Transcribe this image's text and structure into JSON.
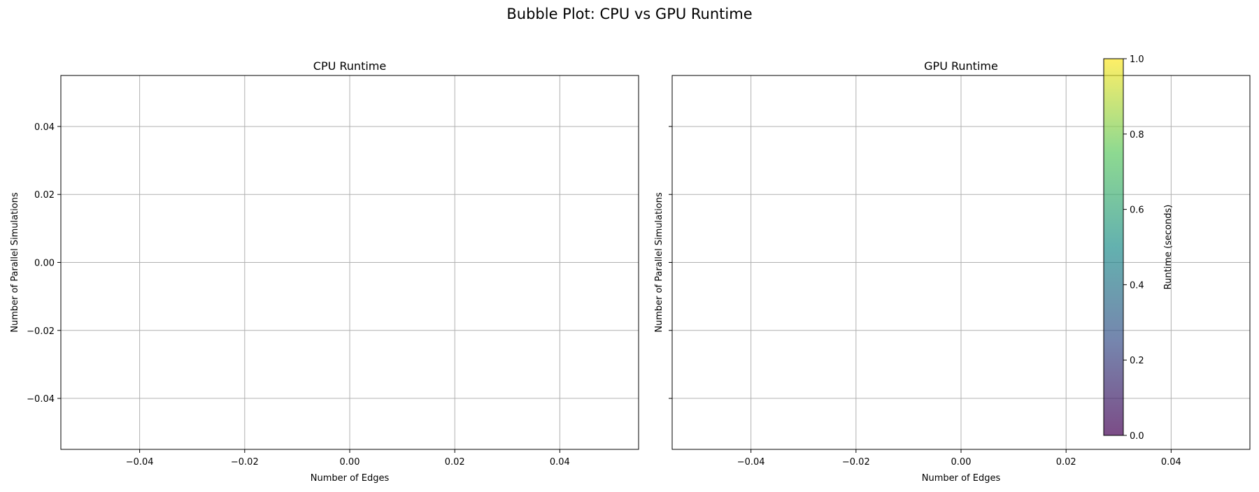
{
  "figure": {
    "title": "Bubble Plot: CPU vs GPU Runtime"
  },
  "chart_data": [
    {
      "type": "scatter",
      "title": "CPU Runtime",
      "xlabel": "Number of Edges",
      "ylabel": "Number of Parallel Simulations",
      "xlim": [
        -0.055,
        0.055
      ],
      "ylim": [
        -0.055,
        0.055
      ],
      "xticks": [
        -0.04,
        -0.02,
        0.0,
        0.02,
        0.04
      ],
      "xtick_labels": [
        "−0.04",
        "−0.02",
        "0.00",
        "0.02",
        "0.04"
      ],
      "yticks": [
        -0.04,
        -0.02,
        0.0,
        0.02,
        0.04
      ],
      "ytick_labels": [
        "−0.04",
        "−0.02",
        "0.00",
        "0.02",
        "0.04"
      ],
      "grid": true,
      "points": []
    },
    {
      "type": "scatter",
      "title": "GPU Runtime",
      "xlabel": "Number of Edges",
      "ylabel": "Number of Parallel Simulations",
      "xlim": [
        -0.055,
        0.055
      ],
      "ylim": [
        -0.055,
        0.055
      ],
      "xticks": [
        -0.04,
        -0.02,
        0.0,
        0.02,
        0.04
      ],
      "xtick_labels": [
        "−0.04",
        "−0.02",
        "0.00",
        "0.02",
        "0.04"
      ],
      "yticks": [
        -0.04,
        -0.02,
        0.0,
        0.02,
        0.04
      ],
      "ytick_labels": [],
      "grid": true,
      "points": []
    }
  ],
  "colorbar": {
    "label": "Runtime (seconds)",
    "colormap": "viridis",
    "range": [
      0.0,
      1.0
    ],
    "ticks": [
      0.0,
      0.2,
      0.4,
      0.6,
      0.8,
      1.0
    ],
    "tick_labels": [
      "0.0",
      "0.2",
      "0.4",
      "0.6",
      "0.8",
      "1.0"
    ],
    "colors": [
      "#440154",
      "#3b528b",
      "#21908d",
      "#5dc962",
      "#fde725"
    ],
    "alpha": 0.7
  }
}
